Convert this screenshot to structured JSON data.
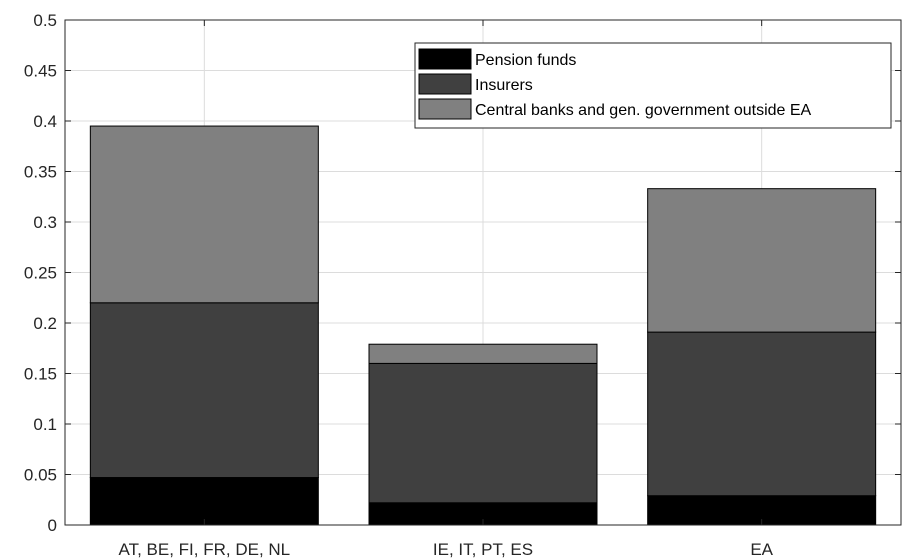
{
  "chart_data": {
    "type": "bar",
    "stacked": true,
    "categories": [
      "AT, BE, FI, FR, DE, NL",
      "IE, IT, PT, ES",
      "EA"
    ],
    "series": [
      {
        "name": "Pension funds",
        "values": [
          0.047,
          0.022,
          0.029
        ],
        "color": "#000000"
      },
      {
        "name": "Insurers",
        "values": [
          0.173,
          0.138,
          0.162
        ],
        "color": "#404040"
      },
      {
        "name": "Central banks and gen. government outside EA",
        "values": [
          0.175,
          0.019,
          0.142
        ],
        "color": "#808080"
      }
    ],
    "title": "",
    "xlabel": "",
    "ylabel": "",
    "ylim": [
      0,
      0.5
    ],
    "yticks": [
      "0",
      "0.05",
      "0.1",
      "0.15",
      "0.2",
      "0.25",
      "0.3",
      "0.35",
      "0.4",
      "0.45",
      "0.5"
    ],
    "grid": true,
    "legend_position": "top-right"
  }
}
